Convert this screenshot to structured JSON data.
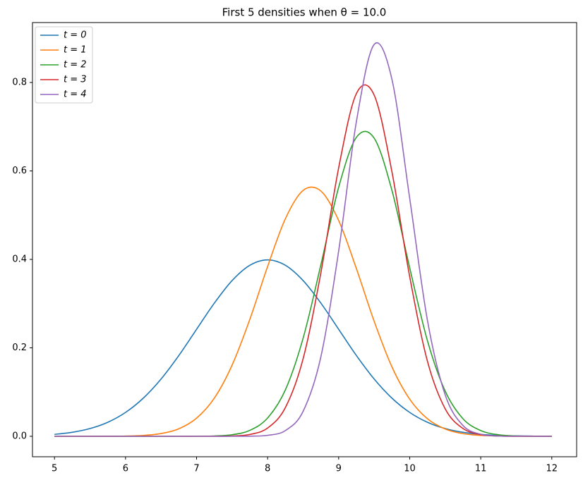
{
  "chart_data": {
    "type": "line",
    "title": "First 5 densities when θ = 10.0",
    "x": [
      5,
      5.25,
      5.5,
      5.75,
      6,
      6.25,
      6.5,
      6.75,
      7,
      7.25,
      7.5,
      7.75,
      8,
      8.25,
      8.5,
      8.75,
      9,
      9.25,
      9.5,
      9.75,
      10,
      10.25,
      10.5,
      10.75,
      11,
      11.25,
      11.5,
      11.75,
      12
    ],
    "series": [
      {
        "name": "t = 0",
        "color": "#1f77b4",
        "values": [
          0.0044,
          0.0091,
          0.0175,
          0.0317,
          0.054,
          0.0863,
          0.1295,
          0.1826,
          0.242,
          0.3011,
          0.3521,
          0.3867,
          0.399,
          0.3867,
          0.3521,
          0.3011,
          0.242,
          0.1826,
          0.1295,
          0.0863,
          0.054,
          0.0317,
          0.0175,
          0.0091,
          0.0044,
          0.002,
          0.0009,
          0.0004,
          0.0001
        ]
      },
      {
        "name": "t = 1",
        "color": "#ff7f0e",
        "values": [
          0,
          0,
          0,
          0.0001,
          0.0006,
          0.002,
          0.0063,
          0.017,
          0.041,
          0.0863,
          0.161,
          0.2646,
          0.384,
          0.492,
          0.556,
          0.5545,
          0.488,
          0.379,
          0.26,
          0.157,
          0.084,
          0.0396,
          0.0165,
          0.006,
          0.002,
          0.0006,
          0.0001,
          0,
          0
        ]
      },
      {
        "name": "t = 2",
        "color": "#2ca02c",
        "values": [
          0,
          0,
          0,
          0,
          0,
          0,
          0,
          0,
          0.0002,
          0.0008,
          0.0036,
          0.0135,
          0.0414,
          0.105,
          0.222,
          0.388,
          0.563,
          0.676,
          0.674,
          0.556,
          0.381,
          0.216,
          0.102,
          0.0397,
          0.0129,
          0.0035,
          0.0008,
          0.0001,
          0
        ]
      },
      {
        "name": "t = 3",
        "color": "#d62728",
        "values": [
          0,
          0,
          0,
          0,
          0,
          0,
          0,
          0,
          0,
          0.0001,
          0.0007,
          0.0042,
          0.0187,
          0.065,
          0.1756,
          0.37,
          0.607,
          0.775,
          0.7715,
          0.598,
          0.361,
          0.1696,
          0.062,
          0.0177,
          0.0039,
          0.0007,
          0.0001,
          0,
          0
        ]
      },
      {
        "name": "t = 4",
        "color": "#9467bd",
        "values": [
          0,
          0,
          0,
          0,
          0,
          0,
          0,
          0,
          0,
          0,
          0,
          0.0003,
          0.0022,
          0.013,
          0.0566,
          0.18,
          0.419,
          0.712,
          0.886,
          0.807,
          0.538,
          0.262,
          0.0935,
          0.0244,
          0.0047,
          0.0006,
          0.0001,
          0,
          0
        ]
      }
    ],
    "xlim": [
      4.69,
      12.35
    ],
    "ylim": [
      -0.0462,
      0.9355
    ],
    "xticks": [
      5,
      6,
      7,
      8,
      9,
      10,
      11,
      12
    ],
    "yticks": [
      {
        "value": 0,
        "label": "0.0"
      },
      {
        "value": 0.2,
        "label": "0.2"
      },
      {
        "value": 0.4,
        "label": "0.4"
      },
      {
        "value": 0.6,
        "label": "0.6"
      },
      {
        "value": 0.8,
        "label": "0.8"
      }
    ],
    "legend": "upper left"
  }
}
